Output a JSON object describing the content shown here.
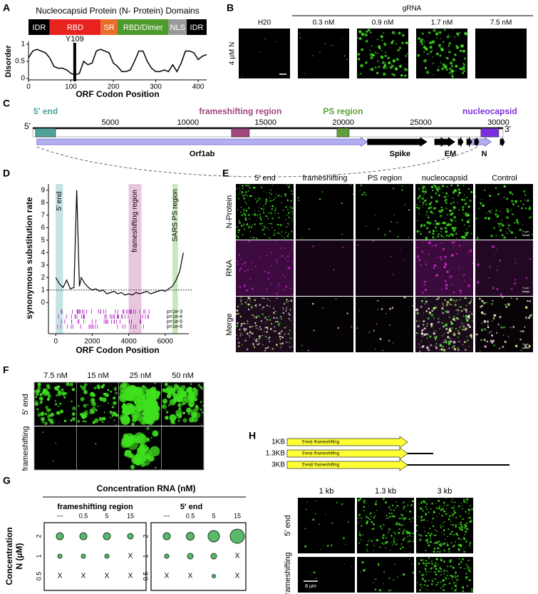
{
  "panel_a": {
    "label": "A",
    "title": "Nucleocapsid Protein (N- Protein) Domains",
    "domains": [
      {
        "label": "IDR",
        "start": 0,
        "end": 50,
        "color": "#000000"
      },
      {
        "label": "RBD",
        "start": 50,
        "end": 170,
        "color": "#e8231f"
      },
      {
        "label": "SR",
        "start": 170,
        "end": 210,
        "color": "#ea6c2b"
      },
      {
        "label": "RBD/Dimer",
        "start": 210,
        "end": 330,
        "color": "#4f9a2c"
      },
      {
        "label": "NLS",
        "start": 330,
        "end": 373,
        "color": "#9a9a9a"
      },
      {
        "label": "IDR",
        "start": 373,
        "end": 420,
        "color": "#000000"
      }
    ],
    "annotation": "Y109",
    "annotation_x": 109,
    "chart": {
      "type": "line",
      "xlabel": "ORF Codon Position",
      "ylabel": "Disorder",
      "color": "#000000",
      "x": [
        0,
        10,
        20,
        30,
        40,
        50,
        60,
        70,
        80,
        90,
        100,
        110,
        120,
        130,
        140,
        150,
        160,
        170,
        180,
        190,
        200,
        210,
        220,
        230,
        240,
        250,
        260,
        270,
        280,
        290,
        300,
        310,
        320,
        330,
        340,
        350,
        360,
        370,
        380,
        390,
        400,
        410,
        420
      ],
      "values": [
        0.6,
        0.8,
        0.85,
        0.8,
        0.75,
        0.6,
        0.35,
        0.3,
        0.3,
        0.25,
        0.15,
        0.1,
        0.15,
        0.5,
        0.4,
        0.45,
        0.8,
        0.85,
        0.8,
        0.75,
        0.45,
        0.35,
        0.2,
        0.2,
        0.25,
        0.5,
        0.8,
        0.8,
        0.5,
        0.3,
        0.2,
        0.2,
        0.25,
        0.2,
        0.4,
        0.2,
        0.45,
        0.8,
        0.8,
        0.75,
        0.55,
        0.65,
        0.7
      ],
      "xlim": [
        0,
        420
      ],
      "ylim": [
        0,
        1
      ],
      "xticks": [
        0,
        100,
        200,
        300,
        400
      ],
      "yticks": [
        0,
        0.5,
        1
      ]
    }
  },
  "panel_b": {
    "label": "B",
    "group_label": "gRNA",
    "row_label": "4 µM N",
    "columns": [
      "H20",
      "0.3 nM",
      "0.9 nM",
      "1.7 nM",
      "7.5 nM"
    ]
  },
  "panel_c": {
    "label": "C",
    "five_prime": "5′",
    "three_prime": "3′",
    "xlim": [
      0,
      30300
    ],
    "ticks": [
      5000,
      10000,
      15000,
      20000,
      25000,
      30000
    ],
    "regions": [
      {
        "label": "5′ end",
        "start": 180,
        "end": 1470,
        "color": "#4fa39a"
      },
      {
        "label": "frameshifting region",
        "start": 12800,
        "end": 13950,
        "color": "#a0457f"
      },
      {
        "label": "PS region",
        "start": 19600,
        "end": 20380,
        "color": "#5fa03a"
      },
      {
        "label": "nucleocapsid",
        "start": 28870,
        "end": 30020,
        "color": "#7b2fe0"
      }
    ],
    "genes": [
      {
        "label": "Orf1ab",
        "start": 266,
        "end": 21555,
        "color": "#b3aef0"
      },
      {
        "label": "Spike",
        "start": 21563,
        "end": 25384,
        "color": "#000000"
      },
      {
        "label": "EM",
        "start": 26245,
        "end": 27191,
        "color": "#000000"
      },
      {
        "label": "N",
        "start": 28274,
        "end": 29533,
        "color": "#b3aef0"
      }
    ]
  },
  "panel_d": {
    "label": "D",
    "type": "line",
    "xlabel": "ORF Codon Position",
    "ylabel": "synonymous substitution rate",
    "color": "#000000",
    "x": [
      0,
      200,
      400,
      600,
      800,
      1000,
      1150,
      1300,
      1400,
      1600,
      1800,
      2000,
      2200,
      2400,
      2600,
      2800,
      3000,
      3200,
      3400,
      3600,
      3800,
      4000,
      4200,
      4400,
      4600,
      4800,
      5000,
      5200,
      5400,
      5600,
      5800,
      6000,
      6200,
      6400,
      6600,
      6800,
      7000
    ],
    "values": [
      2,
      1.5,
      1.2,
      1.8,
      1.1,
      1.2,
      9,
      1.3,
      2,
      1.5,
      1.2,
      1,
      1.1,
      0.9,
      1,
      0.7,
      0.8,
      0.9,
      0.7,
      0.8,
      0.6,
      0.7,
      0.6,
      0.8,
      0.7,
      0.8,
      0.9,
      0.7,
      0.8,
      0.9,
      1,
      0.9,
      1.1,
      1.3,
      1.8,
      2.5,
      4
    ],
    "xlim": [
      -400,
      7300
    ],
    "ylim": [
      -2.5,
      9.5
    ],
    "xticks": [
      0,
      2000,
      4000,
      6000
    ],
    "yticks": [
      0,
      1,
      2,
      3,
      4,
      5,
      6,
      7,
      8,
      9
    ],
    "reference_line": 1,
    "regions": [
      {
        "label": "5′ end",
        "start": 0,
        "end": 400,
        "color": "#9fd1cc"
      },
      {
        "label": "frameshifting region",
        "start": 4000,
        "end": 4700,
        "color": "#d9a0c8"
      },
      {
        "label": "SARS PS region",
        "start": 6400,
        "end": 6700,
        "color": "#a9d58d"
      }
    ],
    "pvalues": [
      "p=1e-3",
      "p=1e-4",
      "p=1e-5",
      "p=1e-6"
    ]
  },
  "panel_e": {
    "label": "E",
    "columns": [
      "5′ end",
      "frameshifting",
      "PS region",
      "nucleocapsid",
      "Control"
    ],
    "rows": [
      "N-Protein",
      "RNA",
      "Merge"
    ],
    "scale_label": "5 µm"
  },
  "panel_f": {
    "label": "F",
    "columns": [
      "7.5 nM",
      "15 nM",
      "25 nM",
      "50 nM"
    ],
    "rows": [
      "5′ end",
      "frameshifting"
    ]
  },
  "panel_g": {
    "label": "G",
    "title": "Concentration RNA (nM)",
    "ylabel": [
      "Concentration",
      "N (µM)"
    ],
    "columns": [
      "---",
      "0.5",
      "5",
      "15"
    ],
    "rows": [
      "2",
      "1",
      "0.5"
    ],
    "groups": [
      {
        "title": "frameshifting region",
        "cells": [
          [
            null,
            null,
            null,
            null
          ],
          [
            null,
            null,
            null,
            "X"
          ],
          [
            "X",
            "X",
            "X",
            "X"
          ]
        ]
      },
      {
        "title": "5′ end",
        "cells": [
          [
            null,
            null,
            null,
            null
          ],
          [
            null,
            null,
            null,
            "X"
          ],
          [
            "X",
            "X",
            null,
            "X"
          ]
        ]
      }
    ]
  },
  "panel_h": {
    "label": "H",
    "constructs": [
      {
        "size": "1KB",
        "label": "5'end /frameshifting"
      },
      {
        "size": "1.3KB",
        "label": "5'end /frameshifting"
      },
      {
        "size": "3KB",
        "label": "5'end/ frameshifting"
      }
    ],
    "columns": [
      "1 kb",
      "1.3 kb",
      "3 kb"
    ],
    "rows": [
      "5′ end",
      "frameshifting"
    ],
    "scale_label": "8 µm"
  }
}
